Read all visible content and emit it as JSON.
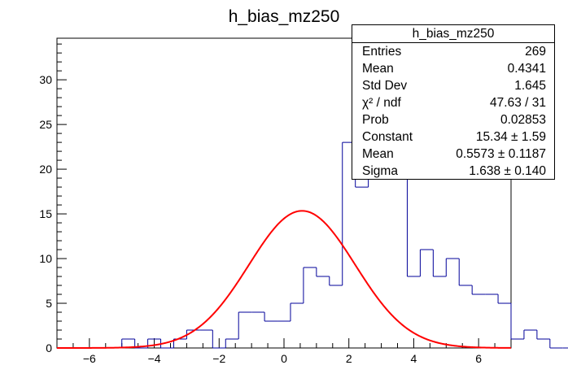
{
  "chart_data": {
    "type": "bar",
    "title": "h_bias_mz250",
    "xlabel": "",
    "ylabel": "",
    "xlim": [
      -7,
      7
    ],
    "ylim": [
      0,
      34.65
    ],
    "x_ticks": [
      -6,
      -4,
      -2,
      0,
      2,
      4,
      6
    ],
    "y_ticks": [
      0,
      5,
      10,
      15,
      20,
      25,
      30
    ],
    "bin_width": 0.4,
    "bin_edges_start": -7,
    "series": [
      {
        "style": "step-histogram",
        "color": "#000099",
        "values": [
          0,
          0,
          0,
          0,
          0,
          1,
          0,
          1,
          0,
          1,
          2,
          2,
          0,
          1,
          4,
          4,
          3,
          3,
          5,
          9,
          8,
          7,
          23,
          18,
          26,
          19,
          33,
          8,
          11,
          8,
          10,
          7,
          6,
          6,
          5,
          1,
          2,
          1,
          0,
          0,
          1,
          1,
          0,
          0,
          0
        ]
      },
      {
        "name": "gaus",
        "color": "#ff0000",
        "constant": 15.34,
        "mean": 0.5573,
        "sigma": 1.638
      }
    ]
  },
  "stats": {
    "title": "h_bias_mz250",
    "rows": [
      {
        "label": "Entries",
        "value": "269"
      },
      {
        "label": "Mean",
        "value": "0.4341"
      },
      {
        "label": "Std Dev",
        "value": "1.645"
      },
      {
        "label": "χ² / ndf",
        "value": "47.63 / 31"
      },
      {
        "label": "Prob",
        "value": "0.02853"
      },
      {
        "label": "Constant",
        "value": "15.34 ± 1.59"
      },
      {
        "label": "Mean",
        "value": "0.5573 ± 0.1187"
      },
      {
        "label": "Sigma",
        "value": "1.638 ± 0.140"
      }
    ]
  }
}
